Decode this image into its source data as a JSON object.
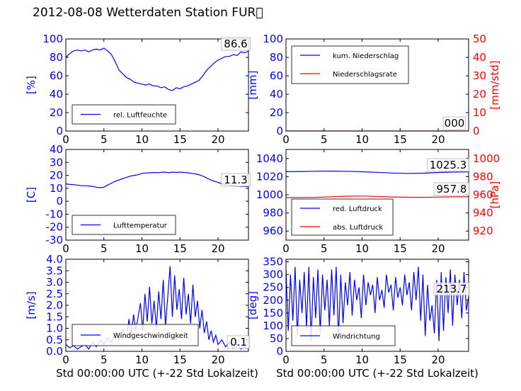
{
  "figure": {
    "title": "2012-08-08 Wetterdaten Station FUR\u0000",
    "xlabel": "Std 00:00:00 UTC (+-22 Std Lokalzeit)"
  },
  "colors": {
    "left_axis": "#0000ff",
    "right_axis": "#ff0000",
    "line_primary": "#0000ff",
    "line_secondary": "#ff0000",
    "frame": "#000000"
  },
  "chart_data": [
    {
      "id": "humidity",
      "type": "line",
      "ylabel": "[%]",
      "ylim": [
        0,
        100
      ],
      "yticks": [
        0,
        20,
        40,
        60,
        80,
        100
      ],
      "xlim": [
        0,
        24
      ],
      "xticks": [
        0,
        5,
        10,
        15,
        20
      ],
      "legend": {
        "placement": "lower-left"
      },
      "annotation": "86.6",
      "series": [
        {
          "name": "rel. Luftfeuchte",
          "color": "#0000ff",
          "x": [
            0,
            0.5,
            1,
            1.5,
            2,
            2.5,
            3,
            3.5,
            4,
            4.5,
            5,
            5.5,
            6,
            6.5,
            7,
            7.5,
            8,
            8.5,
            9,
            9.5,
            10,
            10.5,
            11,
            11.5,
            12,
            12.5,
            13,
            13.5,
            14,
            14.5,
            15,
            15.5,
            16,
            16.5,
            17,
            17.5,
            18,
            18.5,
            19,
            19.5,
            20,
            20.5,
            21,
            21.5,
            22,
            22.5,
            23,
            23.5,
            24
          ],
          "y": [
            80,
            84,
            87,
            88,
            87,
            88,
            86,
            88,
            89,
            88,
            90,
            87,
            83,
            75,
            66,
            62,
            58,
            56,
            53,
            52,
            51,
            50,
            51,
            49,
            49,
            47,
            48,
            45,
            44,
            47,
            46,
            48,
            49,
            51,
            53,
            55,
            60,
            66,
            70,
            74,
            77,
            79,
            81,
            81,
            83,
            82,
            86,
            85,
            86.6
          ]
        }
      ]
    },
    {
      "id": "precipitation",
      "type": "line",
      "ylabel": "[mm]",
      "ylim": [
        0,
        100
      ],
      "yticks": [
        0,
        20,
        40,
        60,
        80,
        100
      ],
      "ylabel_right": "[mm/std]",
      "ylim_right": [
        0,
        50
      ],
      "yticks_right": [
        0,
        10,
        20,
        30,
        40,
        50
      ],
      "xlim": [
        0,
        24
      ],
      "xticks": [
        0,
        5,
        10,
        15,
        20
      ],
      "legend": {
        "placement": "top-left"
      },
      "annotation": "000",
      "series": [
        {
          "name": "kum. Niederschlag",
          "color": "#0000ff",
          "axis": "left",
          "x": [
            0,
            24
          ],
          "y": [
            0,
            0
          ]
        },
        {
          "name": "Niederschlagsrate",
          "color": "#ff0000",
          "axis": "right",
          "x": [
            0,
            24
          ],
          "y": [
            0,
            0
          ]
        }
      ]
    },
    {
      "id": "temperature",
      "type": "line",
      "ylabel": "[C]",
      "ylim": [
        -30,
        40
      ],
      "yticks": [
        -30,
        -20,
        -10,
        0,
        10,
        20,
        30,
        40
      ],
      "xlim": [
        0,
        24
      ],
      "xticks": [
        0,
        5,
        10,
        15,
        20
      ],
      "legend": {
        "placement": "lower-left"
      },
      "annotation": "11.3",
      "series": [
        {
          "name": "Lufttemperatur",
          "color": "#0000ff",
          "x": [
            0,
            0.5,
            1,
            1.5,
            2,
            2.5,
            3,
            3.5,
            4,
            4.5,
            5,
            5.5,
            6,
            6.5,
            7,
            7.5,
            8,
            8.5,
            9,
            9.5,
            10,
            10.5,
            11,
            11.5,
            12,
            12.5,
            13,
            13.5,
            14,
            14.5,
            15,
            15.5,
            16,
            16.5,
            17,
            17.5,
            18,
            18.5,
            19,
            19.5,
            20,
            20.5,
            21,
            21.5,
            22,
            22.5,
            23,
            23.5,
            24
          ],
          "y": [
            13.5,
            13,
            12.8,
            12.5,
            12,
            12,
            11.8,
            11.5,
            10.8,
            10.5,
            10.8,
            12.5,
            14,
            15.5,
            16.5,
            17.5,
            18.5,
            19.5,
            20,
            20.5,
            21.5,
            21.8,
            22,
            22.2,
            22,
            22.3,
            22.5,
            22,
            22.5,
            22.2,
            22.5,
            22.3,
            22,
            21.5,
            21.2,
            20.5,
            19.5,
            18,
            16.5,
            15.5,
            14.5,
            13.5,
            13,
            12.5,
            12,
            11.8,
            11.5,
            11.4,
            11.3
          ]
        }
      ]
    },
    {
      "id": "pressure",
      "type": "line",
      "ylabel_right": "[hPa]",
      "ylim": [
        950,
        1050
      ],
      "yticks": [
        960,
        980,
        1000,
        1020,
        1040
      ],
      "ylim_right": [
        910,
        1010
      ],
      "yticks_right": [
        920,
        940,
        960,
        980,
        1000
      ],
      "xlim": [
        0,
        24
      ],
      "xticks": [
        0,
        5,
        10,
        15,
        20
      ],
      "legend": {
        "placement": "lower-left"
      },
      "annotations": [
        "1025.3",
        "957.8"
      ],
      "series": [
        {
          "name": "red. Luftdruck",
          "color": "#0000ff",
          "axis": "left",
          "x": [
            0,
            2,
            4,
            6,
            8,
            10,
            12,
            14,
            16,
            18,
            20,
            22,
            24
          ],
          "y": [
            1025.5,
            1025.7,
            1026,
            1026.1,
            1025.9,
            1025.4,
            1024.8,
            1024,
            1023.6,
            1023.8,
            1024.6,
            1025.1,
            1025.3
          ]
        },
        {
          "name": "abs. Luftdruck",
          "color": "#ff0000",
          "axis": "right",
          "x": [
            0,
            2,
            4,
            6,
            8,
            10,
            12,
            14,
            16,
            18,
            20,
            22,
            24
          ],
          "y": [
            956.9,
            957,
            957.2,
            957.8,
            958.4,
            958.6,
            958.2,
            957.6,
            957.3,
            957.2,
            957.5,
            957.7,
            957.8
          ]
        }
      ]
    },
    {
      "id": "windspeed",
      "type": "line",
      "ylabel": "[m/s]",
      "ylim": [
        0,
        4
      ],
      "yticks": [
        0.0,
        0.5,
        1.0,
        1.5,
        2.0,
        2.5,
        3.0,
        3.5,
        4.0
      ],
      "yticks_decimals": 1,
      "xlim": [
        0,
        24
      ],
      "xticks": [
        0,
        5,
        10,
        15,
        20
      ],
      "legend": {
        "placement": "lower-left"
      },
      "annotation": "0.1",
      "series": [
        {
          "name": "Windgeschwindigkeit",
          "color": "#0000ff",
          "x": [
            0,
            0.5,
            1,
            1.5,
            2,
            2.5,
            3,
            3.5,
            4,
            4.5,
            5,
            5.5,
            6,
            6.5,
            7,
            7.5,
            8,
            8.3,
            8.6,
            8.9,
            9.2,
            9.5,
            9.8,
            10.1,
            10.4,
            10.7,
            11,
            11.3,
            11.6,
            11.9,
            12.2,
            12.5,
            12.8,
            13.1,
            13.4,
            13.7,
            14,
            14.3,
            14.6,
            14.9,
            15.2,
            15.5,
            15.8,
            16.1,
            16.4,
            16.7,
            17,
            17.3,
            17.6,
            17.9,
            18.2,
            18.5,
            18.8,
            19.1,
            19.4,
            19.7,
            20,
            20.5,
            21,
            21.5,
            22,
            22.5,
            23,
            23.5,
            24
          ],
          "y": [
            0.3,
            0.15,
            0.25,
            0.1,
            0.2,
            0.3,
            0.1,
            0.4,
            0.2,
            0.5,
            0.3,
            0.6,
            0.4,
            0.8,
            0.5,
            0.9,
            0.6,
            1.4,
            0.7,
            1.6,
            0.9,
            1.5,
            2.1,
            0.9,
            2.5,
            1.3,
            2.8,
            1.2,
            2.2,
            1.0,
            2.6,
            1.4,
            3.1,
            1.1,
            2.4,
            3.7,
            1.5,
            3.3,
            1.8,
            2.7,
            1.4,
            3.2,
            1.6,
            2.5,
            1.2,
            2.9,
            1.5,
            2.2,
            1.0,
            1.8,
            0.8,
            1.3,
            0.5,
            0.9,
            0.4,
            0.7,
            0.3,
            0.5,
            0.2,
            0.4,
            0.15,
            0.3,
            0.1,
            0.2,
            0.1
          ]
        }
      ]
    },
    {
      "id": "winddirection",
      "type": "line",
      "ylabel": "[deg]",
      "ylim": [
        0,
        360
      ],
      "yticks": [
        0,
        50,
        100,
        150,
        200,
        250,
        300,
        350
      ],
      "xlim": [
        0,
        24
      ],
      "xticks": [
        0,
        5,
        10,
        15,
        20
      ],
      "legend": {
        "placement": "lower-left"
      },
      "annotation": "213.7",
      "series": [
        {
          "name": "Windrichtung",
          "color": "#0000ff",
          "x": [
            0,
            0.3,
            0.6,
            0.9,
            1.2,
            1.5,
            1.8,
            2.1,
            2.4,
            2.7,
            3,
            3.3,
            3.6,
            3.9,
            4.2,
            4.5,
            4.8,
            5.1,
            5.4,
            5.7,
            6,
            6.3,
            6.6,
            6.9,
            7.2,
            7.5,
            7.8,
            8.1,
            8.4,
            8.7,
            9,
            9.3,
            9.6,
            9.9,
            10.2,
            10.5,
            10.8,
            11.1,
            11.4,
            11.7,
            12,
            12.3,
            12.6,
            12.9,
            13.2,
            13.5,
            13.8,
            14.1,
            14.4,
            14.7,
            15,
            15.3,
            15.6,
            15.9,
            16.2,
            16.5,
            16.8,
            17.1,
            17.4,
            17.7,
            18,
            18.3,
            18.6,
            18.9,
            19.2,
            19.5,
            19.8,
            20.1,
            20.4,
            20.7,
            21,
            21.3,
            21.6,
            21.9,
            22.2,
            22.5,
            22.8,
            23.1,
            23.4,
            23.7,
            24
          ],
          "y": [
            320,
            80,
            300,
            120,
            330,
            60,
            280,
            150,
            310,
            90,
            330,
            40,
            290,
            130,
            320,
            70,
            300,
            160,
            280,
            100,
            320,
            140,
            330,
            50,
            300,
            110,
            270,
            180,
            310,
            140,
            280,
            200,
            250,
            130,
            300,
            180,
            270,
            220,
            260,
            150,
            290,
            200,
            240,
            170,
            300,
            230,
            260,
            160,
            290,
            210,
            250,
            180,
            300,
            220,
            270,
            160,
            310,
            200,
            330,
            120,
            300,
            60,
            260,
            120,
            180,
            70,
            280,
            40,
            310,
            80,
            290,
            150,
            320,
            100,
            300,
            180,
            280,
            130,
            310,
            160,
            213.7
          ]
        }
      ]
    }
  ]
}
